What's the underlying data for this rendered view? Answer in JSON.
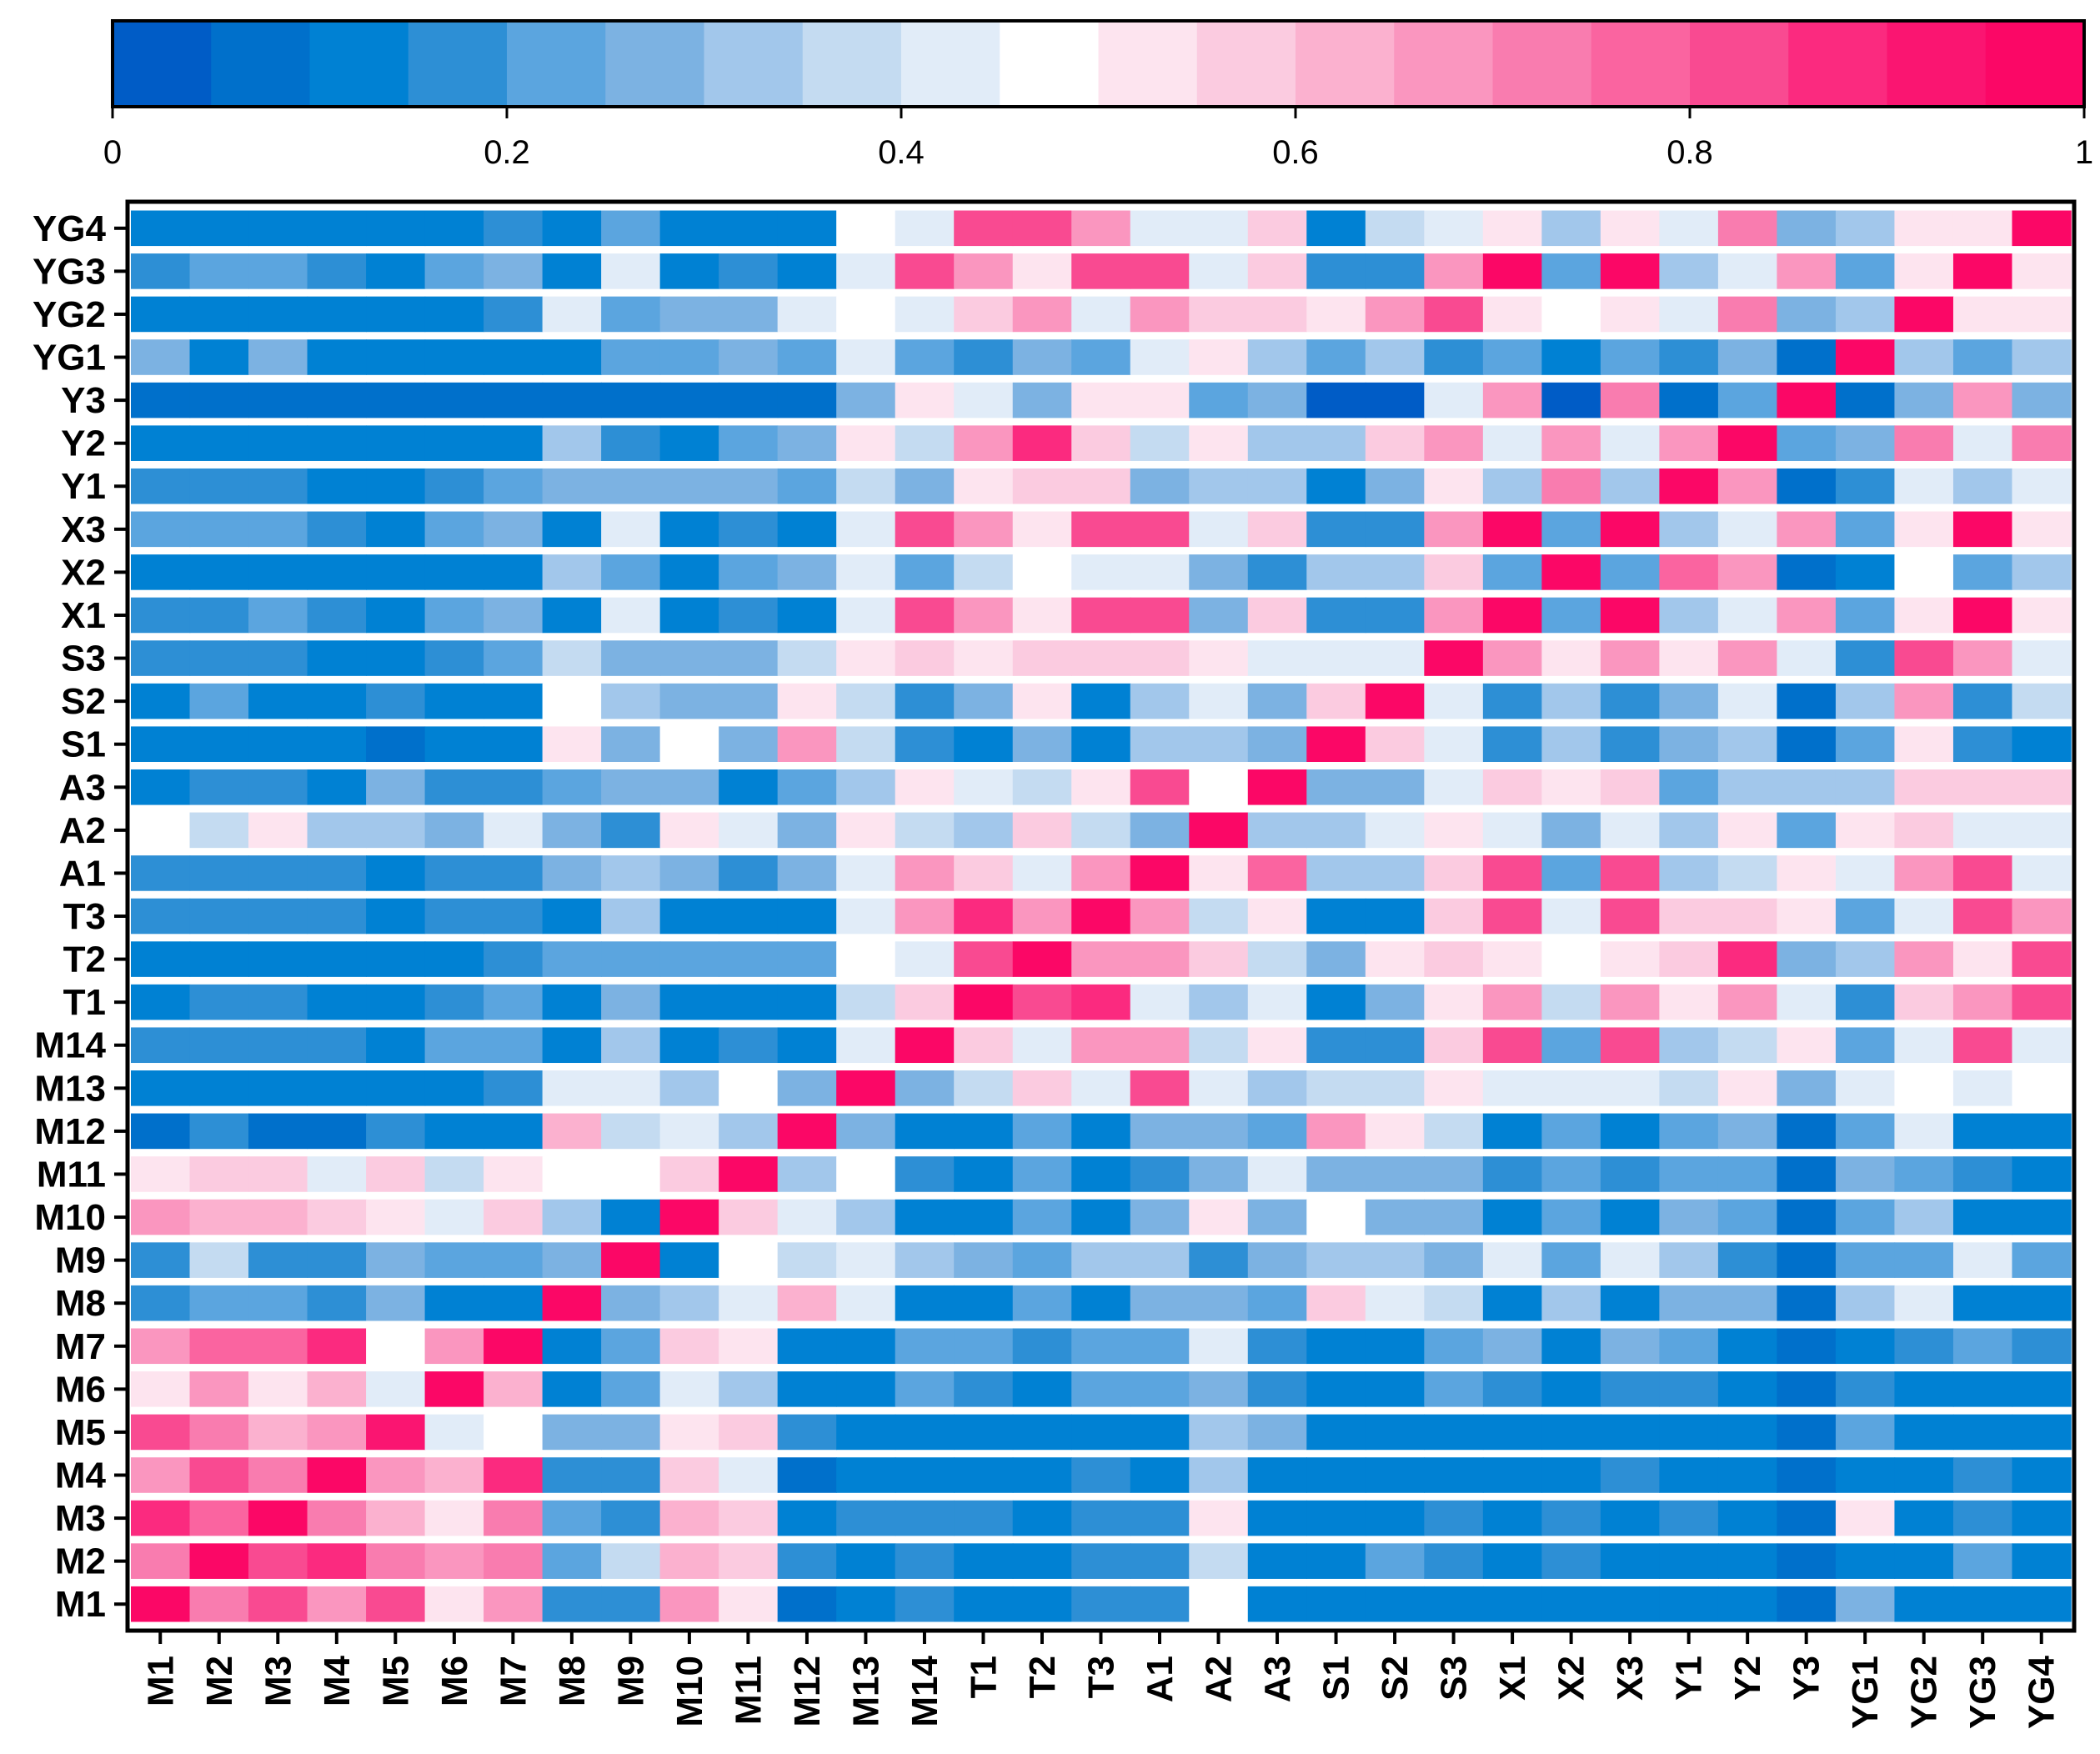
{
  "chart_data": {
    "type": "heatmap",
    "colorbar": {
      "min": 0,
      "max": 1,
      "ticks": [
        "0",
        "0.2",
        "0.4",
        "0.6",
        "0.8",
        "1"
      ],
      "tick_values": [
        0,
        0.2,
        0.4,
        0.6,
        0.8,
        1
      ],
      "colors": [
        "#005cc6",
        "#0070cb",
        "#0081d3",
        "#2d8fd5",
        "#5ba5df",
        "#7cb2e2",
        "#a2c7eb",
        "#c4dbf1",
        "#e1ecf8",
        "#ffffff",
        "#fde4ef",
        "#fbcbe0",
        "#fbb1cf",
        "#fa96bf",
        "#f97caf",
        "#fa64a0",
        "#f94a91",
        "#fb2a7f",
        "#fa1571",
        "#fb0766"
      ]
    },
    "x_labels": [
      "M1",
      "M2",
      "M3",
      "M4",
      "M5",
      "M6",
      "M7",
      "M8",
      "M9",
      "M10",
      "M11",
      "M12",
      "M13",
      "M14",
      "T1",
      "T2",
      "T3",
      "A1",
      "A2",
      "A3",
      "S1",
      "S2",
      "S3",
      "X1",
      "X2",
      "X3",
      "Y1",
      "Y2",
      "Y3",
      "YG1",
      "YG2",
      "YG3",
      "YG4"
    ],
    "y_labels": [
      "YG4",
      "YG3",
      "YG2",
      "YG1",
      "Y3",
      "Y2",
      "Y1",
      "X3",
      "X2",
      "X1",
      "S3",
      "S2",
      "S1",
      "A3",
      "A2",
      "A1",
      "T3",
      "T2",
      "T1",
      "M14",
      "M13",
      "M12",
      "M11",
      "M10",
      "M9",
      "M8",
      "M7",
      "M6",
      "M5",
      "M4",
      "M3",
      "M2",
      "M1"
    ],
    "values": [
      [
        0.12,
        0.12,
        0.12,
        0.12,
        0.12,
        0.12,
        0.17,
        0.12,
        0.22,
        0.12,
        0.12,
        0.12,
        0.47,
        0.42,
        0.82,
        0.82,
        0.67,
        0.42,
        0.42,
        0.57,
        0.12,
        0.37,
        0.42,
        0.52,
        0.32,
        0.52,
        0.42,
        0.72,
        0.27,
        0.32,
        0.52,
        0.52,
        0.97
      ],
      [
        0.17,
        0.22,
        0.22,
        0.17,
        0.12,
        0.22,
        0.27,
        0.12,
        0.42,
        0.12,
        0.17,
        0.12,
        0.42,
        0.82,
        0.67,
        0.52,
        0.82,
        0.82,
        0.42,
        0.57,
        0.17,
        0.17,
        0.67,
        0.97,
        0.22,
        0.97,
        0.32,
        0.42,
        0.67,
        0.22,
        0.52,
        0.97,
        0.52
      ],
      [
        0.12,
        0.12,
        0.12,
        0.12,
        0.12,
        0.12,
        0.17,
        0.42,
        0.22,
        0.27,
        0.27,
        0.42,
        0.47,
        0.42,
        0.57,
        0.67,
        0.42,
        0.67,
        0.57,
        0.57,
        0.52,
        0.67,
        0.82,
        0.52,
        0.47,
        0.52,
        0.42,
        0.72,
        0.27,
        0.32,
        0.97,
        0.52,
        0.52
      ],
      [
        0.27,
        0.12,
        0.27,
        0.12,
        0.12,
        0.12,
        0.12,
        0.12,
        0.22,
        0.22,
        0.27,
        0.22,
        0.42,
        0.22,
        0.17,
        0.27,
        0.22,
        0.42,
        0.52,
        0.32,
        0.22,
        0.32,
        0.17,
        0.22,
        0.12,
        0.22,
        0.17,
        0.27,
        0.07,
        0.97,
        0.32,
        0.22,
        0.32
      ],
      [
        0.07,
        0.07,
        0.07,
        0.07,
        0.07,
        0.07,
        0.07,
        0.07,
        0.07,
        0.07,
        0.07,
        0.07,
        0.27,
        0.52,
        0.42,
        0.27,
        0.52,
        0.52,
        0.22,
        0.27,
        0.02,
        0.02,
        0.42,
        0.67,
        0.02,
        0.72,
        0.07,
        0.22,
        0.97,
        0.07,
        0.27,
        0.67,
        0.27
      ],
      [
        0.12,
        0.12,
        0.12,
        0.12,
        0.12,
        0.12,
        0.12,
        0.32,
        0.17,
        0.12,
        0.22,
        0.27,
        0.52,
        0.37,
        0.67,
        0.87,
        0.57,
        0.37,
        0.52,
        0.32,
        0.32,
        0.57,
        0.67,
        0.42,
        0.67,
        0.42,
        0.67,
        0.97,
        0.22,
        0.27,
        0.72,
        0.42,
        0.72
      ],
      [
        0.17,
        0.17,
        0.17,
        0.12,
        0.12,
        0.17,
        0.22,
        0.27,
        0.27,
        0.27,
        0.27,
        0.22,
        0.37,
        0.27,
        0.52,
        0.57,
        0.57,
        0.27,
        0.32,
        0.32,
        0.12,
        0.27,
        0.52,
        0.32,
        0.72,
        0.32,
        0.97,
        0.67,
        0.07,
        0.17,
        0.42,
        0.32,
        0.42
      ],
      [
        0.22,
        0.22,
        0.22,
        0.17,
        0.12,
        0.22,
        0.27,
        0.12,
        0.42,
        0.12,
        0.17,
        0.12,
        0.42,
        0.82,
        0.67,
        0.52,
        0.82,
        0.82,
        0.42,
        0.57,
        0.17,
        0.17,
        0.67,
        0.97,
        0.22,
        0.97,
        0.32,
        0.42,
        0.67,
        0.22,
        0.52,
        0.97,
        0.52
      ],
      [
        0.12,
        0.12,
        0.12,
        0.12,
        0.12,
        0.12,
        0.12,
        0.32,
        0.22,
        0.12,
        0.22,
        0.27,
        0.42,
        0.22,
        0.37,
        0.47,
        0.42,
        0.42,
        0.27,
        0.17,
        0.32,
        0.32,
        0.57,
        0.22,
        0.97,
        0.22,
        0.77,
        0.67,
        0.07,
        0.12,
        0.47,
        0.22,
        0.32
      ],
      [
        0.17,
        0.17,
        0.22,
        0.17,
        0.12,
        0.22,
        0.27,
        0.12,
        0.42,
        0.12,
        0.17,
        0.12,
        0.42,
        0.82,
        0.67,
        0.52,
        0.82,
        0.82,
        0.27,
        0.57,
        0.17,
        0.17,
        0.67,
        0.97,
        0.22,
        0.97,
        0.32,
        0.42,
        0.67,
        0.22,
        0.52,
        0.97,
        0.52
      ],
      [
        0.17,
        0.17,
        0.17,
        0.12,
        0.12,
        0.17,
        0.22,
        0.37,
        0.27,
        0.27,
        0.27,
        0.37,
        0.52,
        0.57,
        0.52,
        0.57,
        0.57,
        0.57,
        0.52,
        0.42,
        0.42,
        0.42,
        0.97,
        0.67,
        0.52,
        0.67,
        0.52,
        0.67,
        0.42,
        0.17,
        0.82,
        0.67,
        0.42
      ],
      [
        0.12,
        0.22,
        0.12,
        0.12,
        0.17,
        0.12,
        0.12,
        0.47,
        0.32,
        0.27,
        0.27,
        0.52,
        0.37,
        0.17,
        0.27,
        0.52,
        0.12,
        0.32,
        0.42,
        0.27,
        0.57,
        0.97,
        0.42,
        0.17,
        0.32,
        0.17,
        0.27,
        0.42,
        0.07,
        0.32,
        0.67,
        0.17,
        0.37
      ],
      [
        0.12,
        0.12,
        0.12,
        0.12,
        0.07,
        0.12,
        0.12,
        0.52,
        0.27,
        0.47,
        0.27,
        0.67,
        0.37,
        0.17,
        0.12,
        0.27,
        0.12,
        0.32,
        0.32,
        0.27,
        0.97,
        0.57,
        0.42,
        0.17,
        0.32,
        0.17,
        0.27,
        0.32,
        0.07,
        0.22,
        0.52,
        0.17,
        0.12
      ],
      [
        0.12,
        0.17,
        0.17,
        0.12,
        0.27,
        0.17,
        0.17,
        0.22,
        0.27,
        0.27,
        0.12,
        0.22,
        0.32,
        0.52,
        0.42,
        0.37,
        0.52,
        0.82,
        0.47,
        0.97,
        0.27,
        0.27,
        0.42,
        0.57,
        0.52,
        0.57,
        0.22,
        0.32,
        0.32,
        0.32,
        0.57,
        0.57,
        0.57
      ],
      [
        0.47,
        0.37,
        0.52,
        0.32,
        0.32,
        0.27,
        0.42,
        0.27,
        0.17,
        0.52,
        0.42,
        0.27,
        0.52,
        0.37,
        0.32,
        0.57,
        0.37,
        0.27,
        0.97,
        0.32,
        0.32,
        0.42,
        0.52,
        0.42,
        0.27,
        0.42,
        0.32,
        0.52,
        0.22,
        0.52,
        0.57,
        0.42,
        0.42
      ],
      [
        0.17,
        0.17,
        0.17,
        0.17,
        0.12,
        0.17,
        0.17,
        0.27,
        0.32,
        0.27,
        0.17,
        0.27,
        0.42,
        0.67,
        0.57,
        0.42,
        0.67,
        0.97,
        0.52,
        0.77,
        0.32,
        0.32,
        0.57,
        0.82,
        0.22,
        0.82,
        0.32,
        0.37,
        0.52,
        0.42,
        0.67,
        0.82,
        0.42
      ],
      [
        0.17,
        0.17,
        0.17,
        0.17,
        0.12,
        0.17,
        0.17,
        0.12,
        0.32,
        0.12,
        0.12,
        0.12,
        0.42,
        0.67,
        0.87,
        0.67,
        0.97,
        0.67,
        0.37,
        0.52,
        0.12,
        0.12,
        0.57,
        0.82,
        0.42,
        0.82,
        0.57,
        0.57,
        0.52,
        0.22,
        0.42,
        0.82,
        0.67
      ],
      [
        0.12,
        0.12,
        0.12,
        0.12,
        0.12,
        0.12,
        0.17,
        0.22,
        0.22,
        0.22,
        0.22,
        0.22,
        0.47,
        0.42,
        0.82,
        0.97,
        0.67,
        0.67,
        0.57,
        0.37,
        0.27,
        0.52,
        0.57,
        0.52,
        0.47,
        0.52,
        0.57,
        0.87,
        0.27,
        0.32,
        0.67,
        0.52,
        0.82
      ],
      [
        0.12,
        0.17,
        0.17,
        0.12,
        0.12,
        0.17,
        0.22,
        0.12,
        0.27,
        0.12,
        0.12,
        0.12,
        0.37,
        0.57,
        0.97,
        0.82,
        0.87,
        0.42,
        0.32,
        0.42,
        0.12,
        0.27,
        0.52,
        0.67,
        0.37,
        0.67,
        0.52,
        0.67,
        0.42,
        0.17,
        0.57,
        0.67,
        0.82
      ],
      [
        0.17,
        0.17,
        0.17,
        0.17,
        0.12,
        0.22,
        0.22,
        0.12,
        0.32,
        0.12,
        0.17,
        0.12,
        0.42,
        0.97,
        0.57,
        0.42,
        0.67,
        0.67,
        0.37,
        0.52,
        0.17,
        0.17,
        0.57,
        0.82,
        0.22,
        0.82,
        0.32,
        0.37,
        0.52,
        0.22,
        0.42,
        0.82,
        0.42
      ],
      [
        0.12,
        0.12,
        0.12,
        0.12,
        0.12,
        0.12,
        0.17,
        0.42,
        0.42,
        0.32,
        0.47,
        0.27,
        0.97,
        0.27,
        0.37,
        0.57,
        0.42,
        0.82,
        0.42,
        0.32,
        0.37,
        0.37,
        0.52,
        0.42,
        0.42,
        0.42,
        0.37,
        0.52,
        0.27,
        0.42,
        0.47,
        0.42,
        0.47
      ],
      [
        0.07,
        0.17,
        0.07,
        0.07,
        0.17,
        0.12,
        0.12,
        0.62,
        0.37,
        0.42,
        0.32,
        0.97,
        0.27,
        0.12,
        0.12,
        0.22,
        0.12,
        0.27,
        0.27,
        0.22,
        0.67,
        0.52,
        0.37,
        0.12,
        0.22,
        0.12,
        0.22,
        0.27,
        0.07,
        0.22,
        0.42,
        0.12,
        0.12
      ],
      [
        0.52,
        0.57,
        0.57,
        0.42,
        0.57,
        0.37,
        0.52,
        0.47,
        0.47,
        0.57,
        0.97,
        0.32,
        0.47,
        0.17,
        0.12,
        0.22,
        0.12,
        0.17,
        0.27,
        0.42,
        0.27,
        0.27,
        0.27,
        0.17,
        0.22,
        0.17,
        0.22,
        0.22,
        0.07,
        0.27,
        0.22,
        0.17,
        0.12
      ],
      [
        0.67,
        0.62,
        0.62,
        0.57,
        0.52,
        0.42,
        0.57,
        0.32,
        0.12,
        0.97,
        0.57,
        0.42,
        0.32,
        0.12,
        0.12,
        0.22,
        0.12,
        0.27,
        0.52,
        0.27,
        0.47,
        0.27,
        0.27,
        0.12,
        0.22,
        0.12,
        0.27,
        0.22,
        0.07,
        0.22,
        0.32,
        0.12,
        0.12
      ],
      [
        0.17,
        0.37,
        0.17,
        0.17,
        0.27,
        0.22,
        0.22,
        0.27,
        0.97,
        0.12,
        0.47,
        0.37,
        0.42,
        0.32,
        0.27,
        0.22,
        0.32,
        0.32,
        0.17,
        0.27,
        0.32,
        0.32,
        0.27,
        0.42,
        0.22,
        0.42,
        0.32,
        0.17,
        0.07,
        0.22,
        0.22,
        0.42,
        0.22
      ],
      [
        0.17,
        0.22,
        0.22,
        0.17,
        0.27,
        0.12,
        0.12,
        0.97,
        0.27,
        0.32,
        0.42,
        0.62,
        0.42,
        0.12,
        0.12,
        0.22,
        0.12,
        0.27,
        0.27,
        0.22,
        0.57,
        0.42,
        0.37,
        0.12,
        0.32,
        0.12,
        0.27,
        0.27,
        0.07,
        0.32,
        0.42,
        0.12,
        0.12
      ],
      [
        0.67,
        0.77,
        0.77,
        0.87,
        0.47,
        0.67,
        0.97,
        0.12,
        0.22,
        0.57,
        0.52,
        0.12,
        0.12,
        0.22,
        0.22,
        0.17,
        0.22,
        0.22,
        0.42,
        0.17,
        0.12,
        0.12,
        0.22,
        0.27,
        0.12,
        0.27,
        0.22,
        0.12,
        0.07,
        0.12,
        0.17,
        0.22,
        0.17
      ],
      [
        0.52,
        0.67,
        0.52,
        0.62,
        0.42,
        0.97,
        0.62,
        0.12,
        0.22,
        0.42,
        0.32,
        0.12,
        0.12,
        0.22,
        0.17,
        0.12,
        0.22,
        0.22,
        0.27,
        0.17,
        0.12,
        0.12,
        0.22,
        0.17,
        0.12,
        0.17,
        0.17,
        0.12,
        0.07,
        0.17,
        0.12,
        0.12,
        0.12
      ],
      [
        0.82,
        0.72,
        0.62,
        0.67,
        0.92,
        0.42,
        0.47,
        0.27,
        0.27,
        0.52,
        0.57,
        0.17,
        0.12,
        0.12,
        0.12,
        0.12,
        0.12,
        0.12,
        0.32,
        0.27,
        0.12,
        0.12,
        0.12,
        0.12,
        0.12,
        0.12,
        0.12,
        0.12,
        0.07,
        0.22,
        0.12,
        0.12,
        0.12
      ],
      [
        0.67,
        0.82,
        0.72,
        0.97,
        0.67,
        0.62,
        0.87,
        0.17,
        0.17,
        0.57,
        0.42,
        0.07,
        0.12,
        0.12,
        0.12,
        0.12,
        0.17,
        0.12,
        0.32,
        0.12,
        0.12,
        0.12,
        0.12,
        0.12,
        0.12,
        0.17,
        0.12,
        0.12,
        0.07,
        0.12,
        0.12,
        0.17,
        0.12
      ],
      [
        0.87,
        0.77,
        0.97,
        0.72,
        0.62,
        0.52,
        0.72,
        0.22,
        0.17,
        0.62,
        0.57,
        0.12,
        0.17,
        0.17,
        0.17,
        0.12,
        0.17,
        0.17,
        0.52,
        0.12,
        0.12,
        0.12,
        0.17,
        0.12,
        0.17,
        0.12,
        0.17,
        0.12,
        0.07,
        0.52,
        0.12,
        0.17,
        0.12
      ],
      [
        0.72,
        0.97,
        0.82,
        0.87,
        0.72,
        0.67,
        0.72,
        0.22,
        0.37,
        0.62,
        0.57,
        0.17,
        0.12,
        0.17,
        0.12,
        0.12,
        0.17,
        0.17,
        0.37,
        0.12,
        0.12,
        0.22,
        0.17,
        0.12,
        0.17,
        0.12,
        0.12,
        0.12,
        0.07,
        0.12,
        0.12,
        0.22,
        0.12
      ],
      [
        0.97,
        0.72,
        0.82,
        0.67,
        0.82,
        0.52,
        0.67,
        0.17,
        0.17,
        0.67,
        0.52,
        0.07,
        0.12,
        0.17,
        0.12,
        0.12,
        0.17,
        0.17,
        0.47,
        0.12,
        0.12,
        0.12,
        0.12,
        0.12,
        0.12,
        0.12,
        0.12,
        0.12,
        0.07,
        0.27,
        0.12,
        0.12,
        0.12
      ]
    ]
  }
}
